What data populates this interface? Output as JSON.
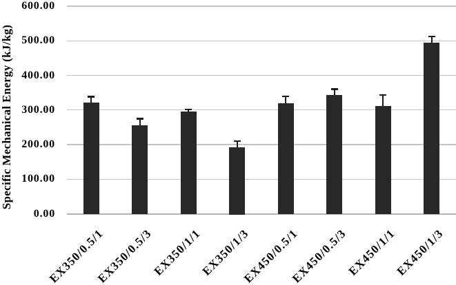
{
  "chart_data": {
    "type": "bar",
    "title": "",
    "xlabel": "",
    "ylabel": "Specific Mechanical Energy (kJ/kg)",
    "categories": [
      "EX350/0.5/1",
      "EX350/0.5/3",
      "EX350/1/1",
      "EX350/1/3",
      "EX450/0.5/1",
      "EX450/0.5/3",
      "EX450/1/1",
      "EX450/1/3"
    ],
    "series": [
      {
        "name": "Specific Mechanical Energy",
        "values": [
          322,
          256,
          295,
          193,
          319,
          344,
          311,
          495
        ],
        "errors": [
          14,
          16,
          4,
          15,
          18,
          14,
          30,
          15
        ]
      }
    ],
    "ylim": [
      0,
      600
    ],
    "ytick_interval": 100,
    "ytick_labels": [
      "0.00",
      "100.00",
      "200.00",
      "300.00",
      "400.00",
      "500.00",
      "600.00"
    ],
    "grid": true,
    "legend": false,
    "error_bars": true,
    "bar_color": "#282828",
    "gridline_color": "#c4c4c4",
    "axis_line_color": "#b2b2b2",
    "error_bar_color": "#1c1c1c",
    "background_color": "#ffffff",
    "text_color": "#000000"
  }
}
